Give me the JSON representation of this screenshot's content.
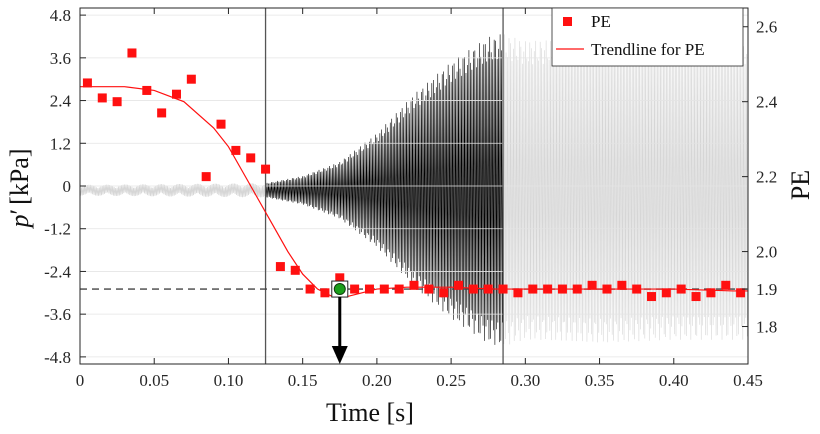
{
  "chart_data": {
    "type": "scatter",
    "xlabel": "Time [s]",
    "ylabel_left_symbol": "p",
    "ylabel_left_prime": "′",
    "ylabel_left_unit": "[kPa]",
    "ylabel_right": "PE",
    "xlim": [
      0,
      0.45
    ],
    "ylim_left": [
      -5.0,
      5.0
    ],
    "ylim_right": [
      1.7,
      2.65
    ],
    "x_ticks": [
      "0",
      "0.05",
      "0.10",
      "0.15",
      "0.20",
      "0.25",
      "0.30",
      "0.35",
      "0.40",
      "0.45"
    ],
    "x_tick_values": [
      0,
      0.05,
      0.1,
      0.15,
      0.2,
      0.25,
      0.3,
      0.35,
      0.4,
      0.45
    ],
    "y_left_ticks": [
      "4.8",
      "3.6",
      "2.4",
      "1.2",
      "0",
      "-1.2",
      "-2.4",
      "-3.6",
      "-4.8"
    ],
    "y_left_tick_values": [
      4.8,
      3.6,
      2.4,
      1.2,
      0,
      -1.2,
      -2.4,
      -3.6,
      -4.8
    ],
    "y_right_ticks": [
      "2.6",
      "2.4",
      "2.2",
      "2.0",
      "1.9",
      "1.8"
    ],
    "y_right_tick_values": [
      2.6,
      2.4,
      2.2,
      2.0,
      1.9,
      1.8
    ],
    "grid": "horizontal",
    "legend_position": "top-right",
    "legend": [
      {
        "label": "PE",
        "marker": "square",
        "color": "#ff1010"
      },
      {
        "label": "Trendline for PE",
        "marker": "line",
        "color": "#ff1010"
      }
    ],
    "vertical_lines_x": [
      0.125,
      0.285
    ],
    "threshold_line": {
      "axis": "right",
      "y": 1.9,
      "style": "dashed",
      "color": "#444444"
    },
    "marked_point": {
      "x": 0.175,
      "y": 1.9,
      "color": "#1a9e1a",
      "arrow": "down"
    },
    "pressure_signal": {
      "description_axis": "left",
      "envelope_points": [
        {
          "x": 0.0,
          "amp": 0.15
        },
        {
          "x": 0.125,
          "amp": 0.2
        },
        {
          "x": 0.15,
          "amp": 0.4
        },
        {
          "x": 0.175,
          "amp": 0.8
        },
        {
          "x": 0.2,
          "amp": 1.6
        },
        {
          "x": 0.225,
          "amp": 2.7
        },
        {
          "x": 0.25,
          "amp": 3.6
        },
        {
          "x": 0.275,
          "amp": 4.3
        },
        {
          "x": 0.285,
          "amp": 4.4
        },
        {
          "x": 0.3,
          "amp": 4.2
        },
        {
          "x": 0.35,
          "amp": 4.3
        },
        {
          "x": 0.4,
          "amp": 4.2
        },
        {
          "x": 0.45,
          "amp": 4.2
        }
      ],
      "dark_color": "#000000",
      "light_color": "#d6d6d6"
    },
    "series": [
      {
        "name": "PE",
        "axis": "right",
        "x": [
          0.005,
          0.015,
          0.025,
          0.035,
          0.045,
          0.055,
          0.065,
          0.075,
          0.085,
          0.095,
          0.105,
          0.115,
          0.125,
          0.135,
          0.145,
          0.155,
          0.165,
          0.175,
          0.185,
          0.195,
          0.205,
          0.215,
          0.225,
          0.235,
          0.245,
          0.255,
          0.265,
          0.275,
          0.285,
          0.295,
          0.305,
          0.315,
          0.325,
          0.335,
          0.345,
          0.355,
          0.365,
          0.375,
          0.385,
          0.395,
          0.405,
          0.415,
          0.425,
          0.435,
          0.445
        ],
        "y": [
          2.45,
          2.41,
          2.4,
          2.53,
          2.43,
          2.37,
          2.42,
          2.46,
          2.2,
          2.34,
          2.27,
          2.25,
          2.22,
          1.96,
          1.95,
          1.9,
          1.89,
          1.93,
          1.9,
          1.9,
          1.9,
          1.9,
          1.91,
          1.9,
          1.89,
          1.91,
          1.9,
          1.9,
          1.9,
          1.89,
          1.9,
          1.9,
          1.9,
          1.9,
          1.91,
          1.9,
          1.91,
          1.9,
          1.88,
          1.89,
          1.9,
          1.88,
          1.89,
          1.91,
          1.89
        ]
      },
      {
        "name": "Trendline for PE",
        "axis": "right",
        "type": "line",
        "x": [
          0,
          0.03,
          0.05,
          0.07,
          0.09,
          0.1,
          0.11,
          0.12,
          0.13,
          0.14,
          0.15,
          0.16,
          0.17,
          0.18,
          0.19,
          0.2,
          0.22,
          0.25,
          0.28,
          0.32,
          0.36,
          0.4,
          0.44,
          0.45
        ],
        "y": [
          2.44,
          2.44,
          2.43,
          2.4,
          2.33,
          2.28,
          2.21,
          2.14,
          2.07,
          2.0,
          1.94,
          1.9,
          1.88,
          1.88,
          1.89,
          1.9,
          1.905,
          1.905,
          1.9,
          1.9,
          1.9,
          1.9,
          1.895,
          1.895
        ]
      }
    ]
  }
}
